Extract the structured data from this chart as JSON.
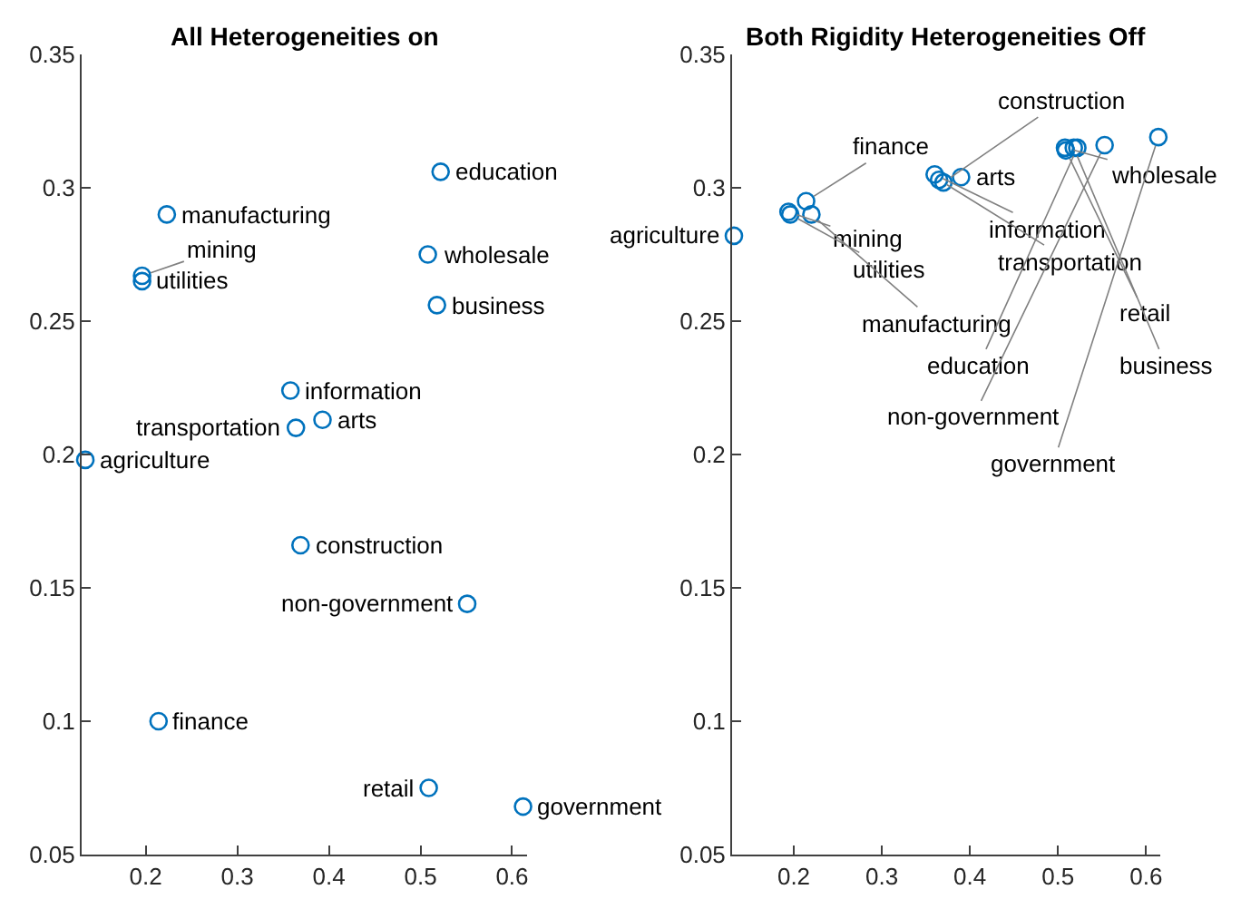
{
  "chart_data": [
    {
      "type": "scatter",
      "title": "All Heterogeneities on",
      "marker": "circle",
      "series": [
        {
          "color": "#0072bd",
          "x": [
            0.134,
            0.196,
            0.196,
            0.214,
            0.223,
            0.358,
            0.364,
            0.369,
            0.393,
            0.508,
            0.509,
            0.518,
            0.522,
            0.551,
            0.612
          ],
          "values": [
            0.198,
            0.265,
            0.267,
            0.1,
            0.29,
            0.224,
            0.21,
            0.166,
            0.213,
            0.275,
            0.075,
            0.256,
            0.306,
            0.144,
            0.068
          ],
          "value_labels": [
            "agriculture",
            "utilities",
            "mining",
            "finance",
            "manufacturing",
            "information",
            "transportation",
            "construction",
            "arts",
            "wholesale",
            "retail",
            "business",
            "education",
            "non-government",
            "government"
          ]
        }
      ],
      "xlim": [
        0.13,
        0.616
      ],
      "xticks": [
        0.2,
        0.3,
        0.4,
        0.5,
        0.6
      ],
      "ylim": [
        0.05,
        0.35
      ],
      "yticks": [
        0.05,
        0.1,
        0.15,
        0.2,
        0.25,
        0.3,
        0.35
      ]
    },
    {
      "type": "scatter",
      "title": "Both Rigidity Heterogeneities Off",
      "marker": "circle",
      "series": [
        {
          "color": "#0072bd",
          "x": [
            0.132,
            0.194,
            0.196,
            0.214,
            0.22,
            0.36,
            0.365,
            0.37,
            0.39,
            0.508,
            0.509,
            0.518,
            0.522,
            0.553,
            0.614
          ],
          "values": [
            0.282,
            0.291,
            0.29,
            0.295,
            0.29,
            0.305,
            0.303,
            0.302,
            0.304,
            0.315,
            0.314,
            0.315,
            0.315,
            0.316,
            0.319
          ],
          "value_labels": [
            "agriculture",
            "mining",
            "utilities",
            "finance",
            "manufacturing",
            "information",
            "transportation",
            "construction",
            "arts",
            "wholesale",
            "retail",
            "business",
            "education",
            "non-government",
            "government"
          ]
        }
      ],
      "xlim": [
        0.13,
        0.616
      ],
      "xticks": [
        0.2,
        0.3,
        0.4,
        0.5,
        0.6
      ],
      "ylim": [
        0.05,
        0.35
      ],
      "yticks": [
        0.05,
        0.1,
        0.15,
        0.2,
        0.25,
        0.3,
        0.35
      ]
    }
  ]
}
